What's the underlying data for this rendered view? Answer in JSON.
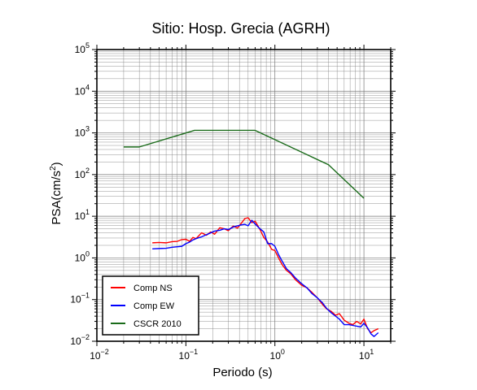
{
  "chart_data": {
    "type": "line",
    "title": "Sitio: Hosp. Grecia (AGRH)",
    "xlabel": "Periodo (s)",
    "ylabel": "PSA(cm/s²)",
    "ylabel_parts": {
      "pre": "PSA(cm/s",
      "sup": "2",
      "post": ")"
    },
    "x_scale": "log",
    "y_scale": "log",
    "xlim": [
      0.01,
      20
    ],
    "ylim": [
      0.01,
      100000
    ],
    "x_ticks": [
      {
        "base": "10",
        "exp": "−2"
      },
      {
        "base": "10",
        "exp": "−1"
      },
      {
        "base": "10",
        "exp": "0"
      },
      {
        "base": "10",
        "exp": "1"
      }
    ],
    "y_ticks": [
      {
        "base": "10",
        "exp": "−2"
      },
      {
        "base": "10",
        "exp": "−1"
      },
      {
        "base": "10",
        "exp": "0"
      },
      {
        "base": "10",
        "exp": "1"
      },
      {
        "base": "10",
        "exp": "2"
      },
      {
        "base": "10",
        "exp": "3"
      },
      {
        "base": "10",
        "exp": "4"
      },
      {
        "base": "10",
        "exp": "5"
      }
    ],
    "grid": true,
    "legend_position": "bottom-left",
    "series": [
      {
        "name": "Comp NS",
        "color": "#ff0000",
        "points": [
          [
            0.042,
            2.3
          ],
          [
            0.05,
            2.35
          ],
          [
            0.06,
            2.3
          ],
          [
            0.07,
            2.45
          ],
          [
            0.08,
            2.5
          ],
          [
            0.09,
            2.75
          ],
          [
            0.1,
            2.8
          ],
          [
            0.11,
            2.5
          ],
          [
            0.12,
            3.1
          ],
          [
            0.13,
            2.9
          ],
          [
            0.15,
            4.0
          ],
          [
            0.17,
            3.5
          ],
          [
            0.19,
            4.2
          ],
          [
            0.21,
            3.7
          ],
          [
            0.24,
            5.3
          ],
          [
            0.27,
            5.0
          ],
          [
            0.3,
            4.5
          ],
          [
            0.34,
            5.8
          ],
          [
            0.38,
            5.2
          ],
          [
            0.42,
            6.8
          ],
          [
            0.46,
            8.8
          ],
          [
            0.5,
            9.2
          ],
          [
            0.55,
            7.0
          ],
          [
            0.6,
            7.6
          ],
          [
            0.68,
            4.8
          ],
          [
            0.75,
            3.1
          ],
          [
            0.83,
            2.4
          ],
          [
            0.92,
            1.6
          ],
          [
            1.0,
            1.5
          ],
          [
            1.1,
            1.0
          ],
          [
            1.2,
            0.7
          ],
          [
            1.35,
            0.5
          ],
          [
            1.5,
            0.42
          ],
          [
            1.7,
            0.3
          ],
          [
            2.0,
            0.22
          ],
          [
            2.3,
            0.19
          ],
          [
            2.6,
            0.15
          ],
          [
            3.0,
            0.11
          ],
          [
            3.4,
            0.078
          ],
          [
            3.8,
            0.06
          ],
          [
            4.3,
            0.052
          ],
          [
            4.8,
            0.042
          ],
          [
            5.3,
            0.046
          ],
          [
            6.0,
            0.032
          ],
          [
            6.8,
            0.027
          ],
          [
            7.5,
            0.025
          ],
          [
            8.3,
            0.03
          ],
          [
            9.2,
            0.026
          ],
          [
            10.0,
            0.034
          ],
          [
            11.0,
            0.02
          ],
          [
            12.0,
            0.016
          ],
          [
            13.0,
            0.018
          ],
          [
            14.5,
            0.02
          ]
        ]
      },
      {
        "name": "Comp EW",
        "color": "#0000ff",
        "points": [
          [
            0.042,
            1.65
          ],
          [
            0.05,
            1.68
          ],
          [
            0.06,
            1.7
          ],
          [
            0.07,
            1.8
          ],
          [
            0.08,
            1.85
          ],
          [
            0.09,
            1.9
          ],
          [
            0.1,
            2.2
          ],
          [
            0.11,
            2.4
          ],
          [
            0.12,
            2.7
          ],
          [
            0.13,
            2.9
          ],
          [
            0.15,
            3.2
          ],
          [
            0.17,
            3.6
          ],
          [
            0.19,
            4.0
          ],
          [
            0.21,
            4.4
          ],
          [
            0.24,
            4.6
          ],
          [
            0.27,
            5.0
          ],
          [
            0.3,
            4.8
          ],
          [
            0.34,
            5.5
          ],
          [
            0.38,
            5.9
          ],
          [
            0.42,
            6.2
          ],
          [
            0.46,
            6.4
          ],
          [
            0.5,
            5.9
          ],
          [
            0.55,
            8.0
          ],
          [
            0.6,
            6.5
          ],
          [
            0.68,
            5.0
          ],
          [
            0.75,
            4.2
          ],
          [
            0.83,
            2.2
          ],
          [
            0.92,
            2.2
          ],
          [
            1.0,
            1.9
          ],
          [
            1.1,
            1.2
          ],
          [
            1.2,
            0.85
          ],
          [
            1.35,
            0.55
          ],
          [
            1.5,
            0.45
          ],
          [
            1.7,
            0.33
          ],
          [
            2.0,
            0.24
          ],
          [
            2.3,
            0.19
          ],
          [
            2.6,
            0.14
          ],
          [
            3.0,
            0.11
          ],
          [
            3.4,
            0.085
          ],
          [
            3.8,
            0.062
          ],
          [
            4.3,
            0.048
          ],
          [
            4.8,
            0.04
          ],
          [
            5.3,
            0.034
          ],
          [
            6.0,
            0.025
          ],
          [
            6.8,
            0.025
          ],
          [
            7.5,
            0.024
          ],
          [
            8.3,
            0.023
          ],
          [
            9.2,
            0.022
          ],
          [
            10.0,
            0.027
          ],
          [
            11.0,
            0.021
          ],
          [
            12.0,
            0.015
          ],
          [
            13.0,
            0.013
          ],
          [
            14.5,
            0.016
          ]
        ]
      },
      {
        "name": "CSCR 2010",
        "color": "#1a6b1a",
        "points": [
          [
            0.02,
            460
          ],
          [
            0.03,
            460
          ],
          [
            0.125,
            1150
          ],
          [
            0.6,
            1150
          ],
          [
            4.0,
            172
          ],
          [
            10.0,
            27
          ]
        ]
      }
    ]
  }
}
